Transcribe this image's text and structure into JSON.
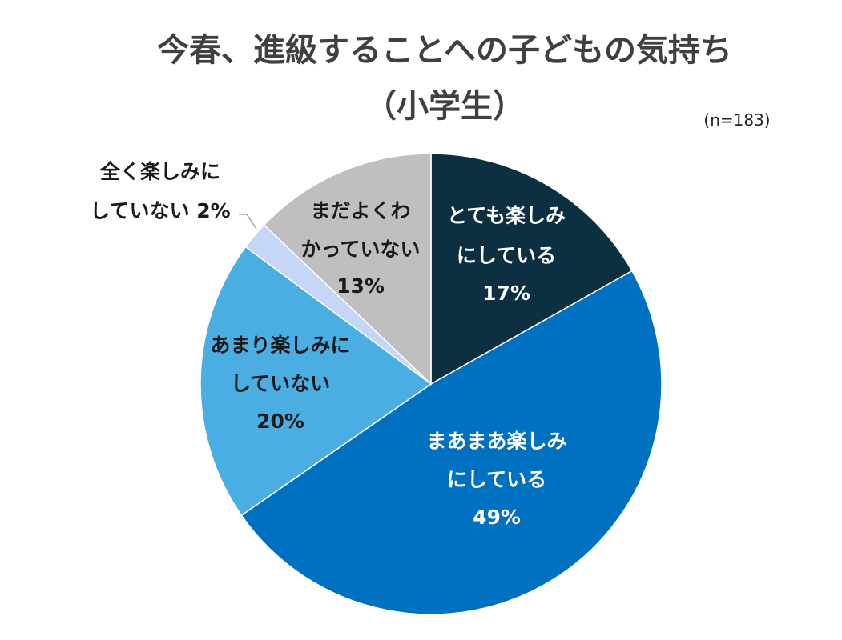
{
  "chart_data": {
    "type": "pie",
    "title": "今春、進級することへの子どもの気持ち",
    "subtitle": "（小学生）",
    "note": "(n=183)",
    "start": "top",
    "direction": "clockwise",
    "categories": [
      "とても楽しみにしている",
      "まあまあ楽しみにしている",
      "あまり楽しみにしていない",
      "全く楽しみにしていない",
      "まだよくわかっていない"
    ],
    "label_lines": [
      [
        "とても楽しみ",
        "にしている",
        "17%"
      ],
      [
        "まあまあ楽しみ",
        "にしている",
        "49%"
      ],
      [
        "あまり楽しみに",
        "していない",
        "20%"
      ],
      [
        "全く楽しみに",
        "していない 2%"
      ],
      [
        "まだよくわ",
        "かっていない",
        "13%"
      ]
    ],
    "values": [
      17,
      49,
      20,
      2,
      13
    ],
    "unit": "%",
    "colors": [
      "#0d2f42",
      "#0070c0",
      "#4aaee2",
      "#c6d6f6",
      "#bfbfbf"
    ],
    "label_colors": [
      "#ffffff",
      "#ffffff",
      "#1a1a1a",
      "#1a1a1a",
      "#1a1a1a"
    ]
  }
}
